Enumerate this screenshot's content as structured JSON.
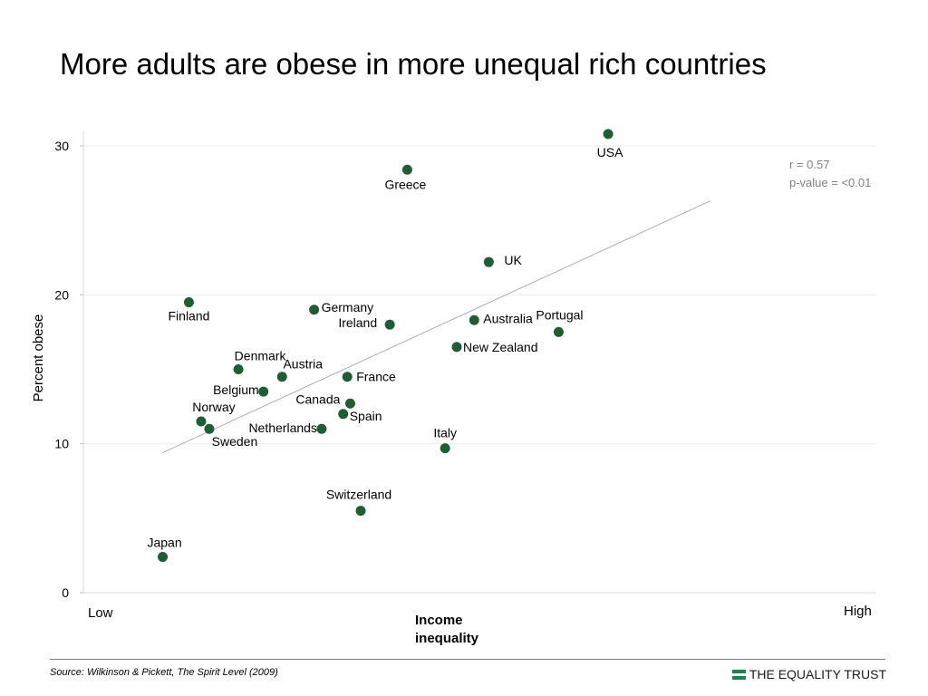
{
  "slide": {
    "title": "More adults are obese in more unequal rich countries",
    "source": "Source: Wilkinson & Pickett, The Spirit Level (2009)",
    "brand": "THE EQUALITY TRUST",
    "brand_color": "#0e8a4a"
  },
  "chart_data": {
    "type": "scatter",
    "title": "",
    "ylabel": "Percent obese",
    "xlabel": "Income\ninequality",
    "x_low_label": "Low",
    "x_high_label": "High",
    "xlim": [
      0,
      100
    ],
    "ylim": [
      0,
      31
    ],
    "yticks": [
      0,
      10,
      20,
      30
    ],
    "grid": "horizontal",
    "marker_color": "#1e5e33",
    "trendline_color": "#a6a6a6",
    "annotation": [
      "r = 0.57",
      "p-value = <0.01"
    ],
    "trendline": [
      [
        6,
        9.4
      ],
      [
        100,
        26.3
      ]
    ],
    "points": [
      {
        "label": "USA",
        "x": 82.5,
        "y": 30.8
      },
      {
        "label": "Greece",
        "x": 48,
        "y": 28.4
      },
      {
        "label": "UK",
        "x": 62,
        "y": 22.2
      },
      {
        "label": "Finland",
        "x": 10.5,
        "y": 19.5
      },
      {
        "label": "Germany",
        "x": 32,
        "y": 19.0
      },
      {
        "label": "Ireland",
        "x": 45,
        "y": 18.0
      },
      {
        "label": "Australia",
        "x": 59.5,
        "y": 18.3
      },
      {
        "label": "Portugal",
        "x": 74,
        "y": 17.5
      },
      {
        "label": "New Zealand",
        "x": 56.5,
        "y": 16.5
      },
      {
        "label": "Denmark",
        "x": 19,
        "y": 15.0
      },
      {
        "label": "Austria",
        "x": 26.5,
        "y": 14.5
      },
      {
        "label": "France",
        "x": 37.7,
        "y": 14.5
      },
      {
        "label": "Belgium",
        "x": 23.3,
        "y": 13.5
      },
      {
        "label": "Canada",
        "x": 38.2,
        "y": 12.7
      },
      {
        "label": "Spain",
        "x": 37,
        "y": 12.0
      },
      {
        "label": "Norway",
        "x": 12.6,
        "y": 11.5
      },
      {
        "label": "Sweden",
        "x": 14,
        "y": 11.0
      },
      {
        "label": "Netherlands",
        "x": 33.3,
        "y": 11.0
      },
      {
        "label": "Italy",
        "x": 54.5,
        "y": 9.7
      },
      {
        "label": "Switzerland",
        "x": 40,
        "y": 5.5
      },
      {
        "label": "Japan",
        "x": 6,
        "y": 2.4
      }
    ]
  }
}
